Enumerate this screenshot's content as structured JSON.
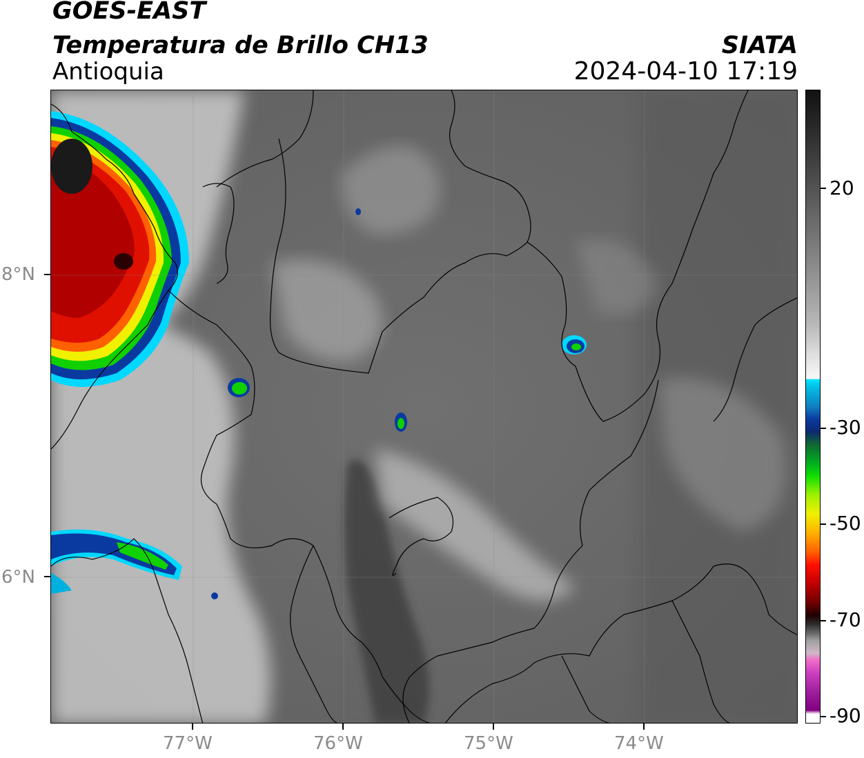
{
  "header": {
    "title_line1": "GOES-EAST",
    "title_line2": "Temperatura de Brillo CH13",
    "organization": "SIATA",
    "region": "Antioquia",
    "timestamp": "2024-04-10 17:19"
  },
  "map": {
    "lat_labels": [
      "8°N",
      "6°N"
    ],
    "lon_labels": [
      "77°W",
      "76°W",
      "75°W",
      "74°W"
    ],
    "colors": {
      "background_gray": "#6e6e6e",
      "cold_cloud_red": "#e01000",
      "cold_cloud_yellow": "#f0f000",
      "cold_cloud_green": "#10d000",
      "cold_cloud_blue": "#0a3aa0",
      "cold_cloud_cyan": "#00e5ff",
      "borders": "#000000"
    }
  },
  "colorbar": {
    "tick_labels": [
      "20",
      "-30",
      "-50",
      "-70",
      "-90"
    ]
  }
}
